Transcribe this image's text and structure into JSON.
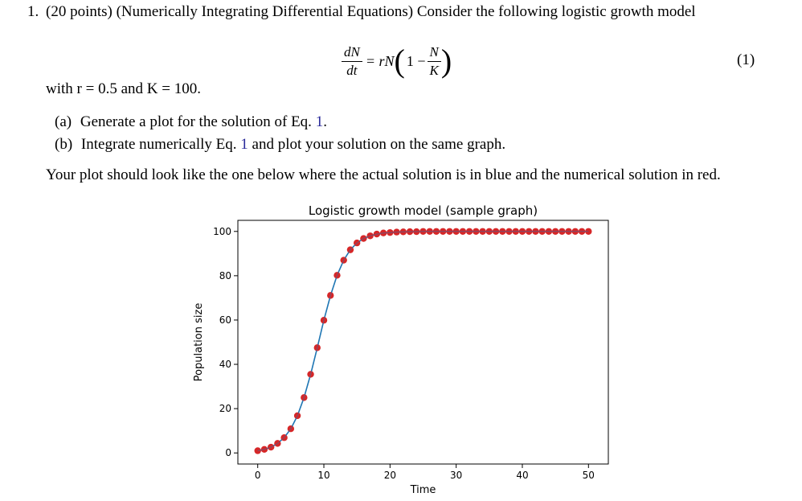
{
  "problem": {
    "number": "1.",
    "header": "(20 points) (Numerically Integrating Differential Equations) Consider the following logistic growth model",
    "equation": {
      "lhs_num": "dN",
      "lhs_den": "dt",
      "equals_rN": "= rN",
      "paren_open": "(",
      "one_minus": "1 −",
      "frac_num": "N",
      "frac_den": "K",
      "paren_close": ")",
      "tag": "(1)"
    },
    "with_line": "with r = 0.5 and K = 100.",
    "items": [
      {
        "label": "(a)",
        "text_before": "Generate a plot for the solution of Eq. ",
        "ref": "1",
        "text_after": "."
      },
      {
        "label": "(b)",
        "text_before": "Integrate numerically Eq. ",
        "ref": "1",
        "text_after": " and plot your solution on the same graph."
      }
    ],
    "instruction": "Your plot should look like the one below where the actual solution is in blue and the numerical solution in red."
  },
  "chart_data": {
    "type": "line",
    "title": "Logistic growth model (sample graph)",
    "xlabel": "Time",
    "ylabel": "Population size",
    "xlim": [
      -3,
      53
    ],
    "ylim": [
      -5,
      105
    ],
    "xticks": [
      0,
      10,
      20,
      30,
      40,
      50
    ],
    "yticks": [
      0,
      20,
      40,
      60,
      80,
      100
    ],
    "grid": false,
    "colors": {
      "actual": "#1f77b4",
      "numerical": "#d62728"
    },
    "series": [
      {
        "style": "line",
        "x": [
          0,
          1,
          2,
          3,
          4,
          5,
          6,
          7,
          8,
          9,
          10,
          11,
          12,
          13,
          14,
          15,
          16,
          17,
          18,
          19,
          20,
          21,
          22,
          23,
          24,
          25,
          26,
          27,
          28,
          29,
          30,
          31,
          32,
          33,
          34,
          35,
          36,
          37,
          38,
          39,
          40,
          41,
          42,
          43,
          44,
          45,
          46,
          47,
          48,
          49,
          50
        ],
        "y": [
          1.0,
          1.6,
          2.6,
          4.3,
          6.9,
          10.9,
          16.8,
          25.0,
          35.5,
          47.5,
          59.9,
          71.1,
          80.2,
          87.0,
          91.7,
          94.8,
          96.8,
          98.0,
          98.8,
          99.3,
          99.5,
          99.7,
          99.8,
          99.9,
          99.9,
          100,
          100,
          100,
          100,
          100,
          100,
          100,
          100,
          100,
          100,
          100,
          100,
          100,
          100,
          100,
          100,
          100,
          100,
          100,
          100,
          100,
          100,
          100,
          100,
          100,
          100
        ]
      },
      {
        "style": "markers",
        "x": [
          0,
          1,
          2,
          3,
          4,
          5,
          6,
          7,
          8,
          9,
          10,
          11,
          12,
          13,
          14,
          15,
          16,
          17,
          18,
          19,
          20,
          21,
          22,
          23,
          24,
          25,
          26,
          27,
          28,
          29,
          30,
          31,
          32,
          33,
          34,
          35,
          36,
          37,
          38,
          39,
          40,
          41,
          42,
          43,
          44,
          45,
          46,
          47,
          48,
          49,
          50
        ],
        "y": [
          1.0,
          1.6,
          2.6,
          4.3,
          6.9,
          10.9,
          16.8,
          25.0,
          35.5,
          47.5,
          59.9,
          71.1,
          80.2,
          87.0,
          91.7,
          94.8,
          96.8,
          98.0,
          98.8,
          99.3,
          99.5,
          99.7,
          99.8,
          99.9,
          99.9,
          100,
          100,
          100,
          100,
          100,
          100,
          100,
          100,
          100,
          100,
          100,
          100,
          100,
          100,
          100,
          100,
          100,
          100,
          100,
          100,
          100,
          100,
          100,
          100,
          100,
          100
        ]
      }
    ]
  }
}
